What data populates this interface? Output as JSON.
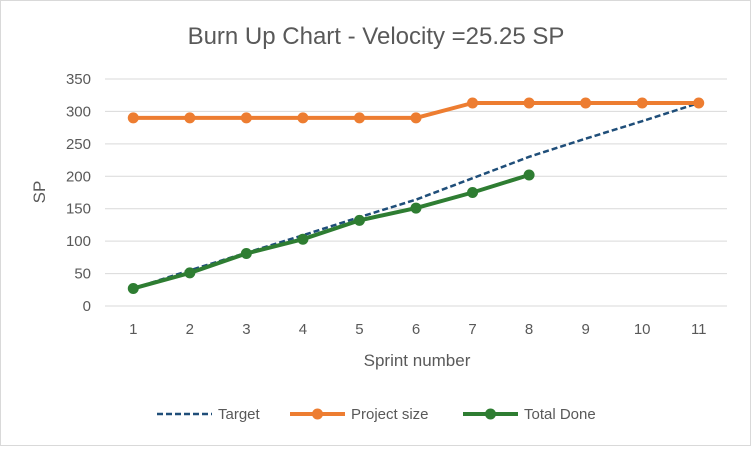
{
  "chart_data": {
    "type": "line",
    "title": "Burn Up Chart - Velocity =25.25 SP",
    "xlabel": "Sprint number",
    "ylabel": "SP",
    "x": [
      1,
      2,
      3,
      4,
      5,
      6,
      7,
      8,
      9,
      10,
      11
    ],
    "x_tick_labels": [
      "1",
      "2",
      "3",
      "4",
      "5",
      "6",
      "7",
      "8",
      "9",
      "10",
      "11"
    ],
    "ylim": [
      0,
      350
    ],
    "y_ticks": [
      0,
      50,
      100,
      150,
      200,
      250,
      300,
      350
    ],
    "y_tick_labels": [
      "0",
      "50",
      "100",
      "150",
      "200",
      "250",
      "300",
      "350"
    ],
    "grid": "horizontal",
    "legend_position": "bottom",
    "series": [
      {
        "name": "Target",
        "color": "#1f4e79",
        "style": "dashed",
        "markers": false,
        "values": [
          27,
          55,
          82,
          109,
          137,
          164,
          197,
          230,
          258,
          285,
          313
        ]
      },
      {
        "name": "Project size",
        "color": "#ed7d31",
        "style": "solid",
        "markers": true,
        "values": [
          290,
          290,
          290,
          290,
          290,
          290,
          313,
          313,
          313,
          313,
          313
        ]
      },
      {
        "name": "Total Done",
        "color": "#2e7d32",
        "style": "solid",
        "markers": true,
        "values": [
          27,
          51,
          81,
          103,
          132,
          151,
          175,
          202,
          null,
          null,
          null
        ]
      }
    ]
  }
}
